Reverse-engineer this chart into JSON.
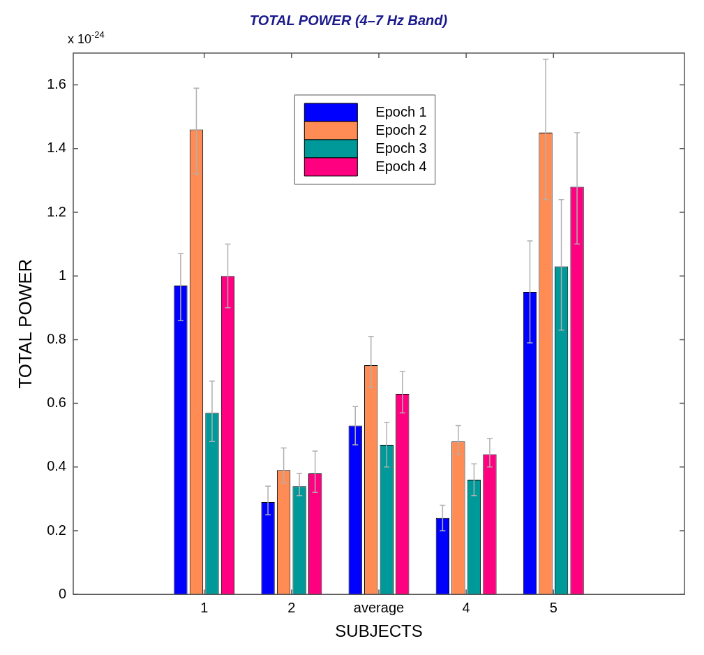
{
  "chart_data": {
    "type": "bar",
    "title": "TOTAL POWER (4–7 Hz Band)",
    "xlabel": "SUBJECTS",
    "ylabel": "TOTAL POWER",
    "annotations": [
      "x 10$^{-24}$"
    ],
    "categories": [
      "1",
      "2",
      "average",
      "4",
      "5"
    ],
    "series": [
      {
        "name": "Epoch 1",
        "color": "#0000ff",
        "values": [
          0.97,
          0.29,
          0.53,
          0.24,
          0.95
        ],
        "errors": [
          [
            0.86,
            1.07
          ],
          [
            0.25,
            0.34
          ],
          [
            0.47,
            0.59
          ],
          [
            0.2,
            0.28
          ],
          [
            0.79,
            1.11
          ]
        ]
      },
      {
        "name": "Epoch 2",
        "color": "#ff8c55",
        "values": [
          1.46,
          0.39,
          0.72,
          0.48,
          1.45
        ],
        "errors": [
          [
            1.32,
            1.59
          ],
          [
            0.35,
            0.46
          ],
          [
            0.65,
            0.81
          ],
          [
            0.44,
            0.53
          ],
          [
            1.24,
            1.68
          ]
        ]
      },
      {
        "name": "Epoch 3",
        "color": "#009999",
        "values": [
          0.57,
          0.34,
          0.47,
          0.36,
          1.03
        ],
        "errors": [
          [
            0.48,
            0.67
          ],
          [
            0.31,
            0.38
          ],
          [
            0.4,
            0.54
          ],
          [
            0.31,
            0.41
          ],
          [
            0.83,
            1.24
          ]
        ]
      },
      {
        "name": "Epoch 4",
        "color": "#ff0080",
        "values": [
          1.0,
          0.38,
          0.63,
          0.44,
          1.28
        ],
        "errors": [
          [
            0.9,
            1.1
          ],
          [
            0.32,
            0.45
          ],
          [
            0.57,
            0.7
          ],
          [
            0.4,
            0.49
          ],
          [
            1.1,
            1.45
          ]
        ]
      }
    ],
    "ylim": [
      0,
      1.7
    ],
    "yticks": [
      0,
      0.2,
      0.4,
      0.6,
      0.8,
      1,
      1.2,
      1.4,
      1.6
    ],
    "grid": false,
    "legend": "top"
  }
}
